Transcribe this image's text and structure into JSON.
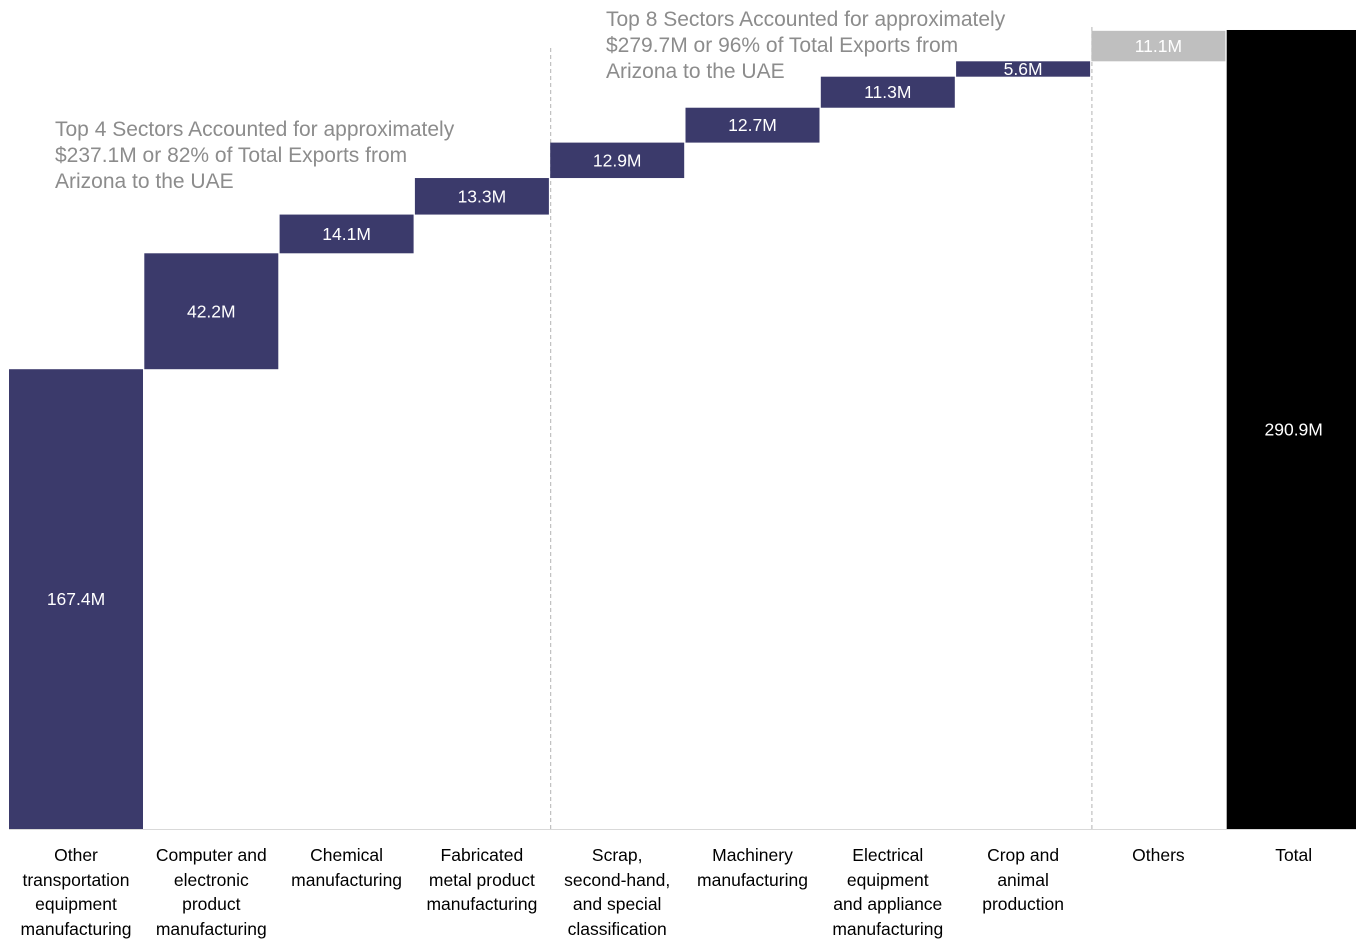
{
  "chart_data": {
    "type": "bar",
    "subtype": "waterfall",
    "unit_suffix": "M",
    "ylim": [
      0,
      300
    ],
    "grid": false,
    "legend": "none",
    "categories": [
      [
        "Other",
        "transportation",
        "equipment",
        "manufacturing"
      ],
      [
        "Computer and",
        "electronic",
        "product",
        "manufacturing"
      ],
      [
        "Chemical",
        "manufacturing"
      ],
      [
        "Fabricated",
        "metal product",
        "manufacturing"
      ],
      [
        "Scrap,",
        "second-hand,",
        "and special",
        "classification"
      ],
      [
        "Machinery",
        "manufacturing"
      ],
      [
        "Electrical",
        "equipment",
        "and appliance",
        "manufacturing"
      ],
      [
        "Crop and",
        "animal",
        "production"
      ],
      [
        "Others"
      ],
      [
        "Total"
      ]
    ],
    "values": [
      167.4,
      42.2,
      14.1,
      13.3,
      12.9,
      12.7,
      11.3,
      5.6,
      11.1,
      290.9
    ],
    "data_labels": [
      "167.4M",
      "42.2M",
      "14.1M",
      "13.3M",
      "12.9M",
      "12.7M",
      "11.3M",
      "5.6M",
      "11.1M",
      "290.9M"
    ],
    "bar_kinds": [
      "increment",
      "increment",
      "increment",
      "increment",
      "increment",
      "increment",
      "increment",
      "increment",
      "other",
      "total"
    ],
    "annotations": [
      {
        "lines": [
          "Top 4 Sectors Accounted for approximately",
          "$237.1M or 82% of Total Exports from",
          "Arizona to the UAE"
        ],
        "after_category_index": 3
      },
      {
        "lines": [
          "Top 8 Sectors Accounted for approximately",
          "$279.7M or 96% of Total Exports from",
          "Arizona to the UAE"
        ],
        "after_category_index": 7
      }
    ]
  },
  "colors": {
    "increment": "#3b3a6b",
    "other": "#bfbfbf",
    "total": "#000000",
    "label_text": "#ffffff",
    "annotation_text": "#8c8c8c",
    "divider": "#b3b3b3",
    "axis": "#d9d9d9"
  }
}
